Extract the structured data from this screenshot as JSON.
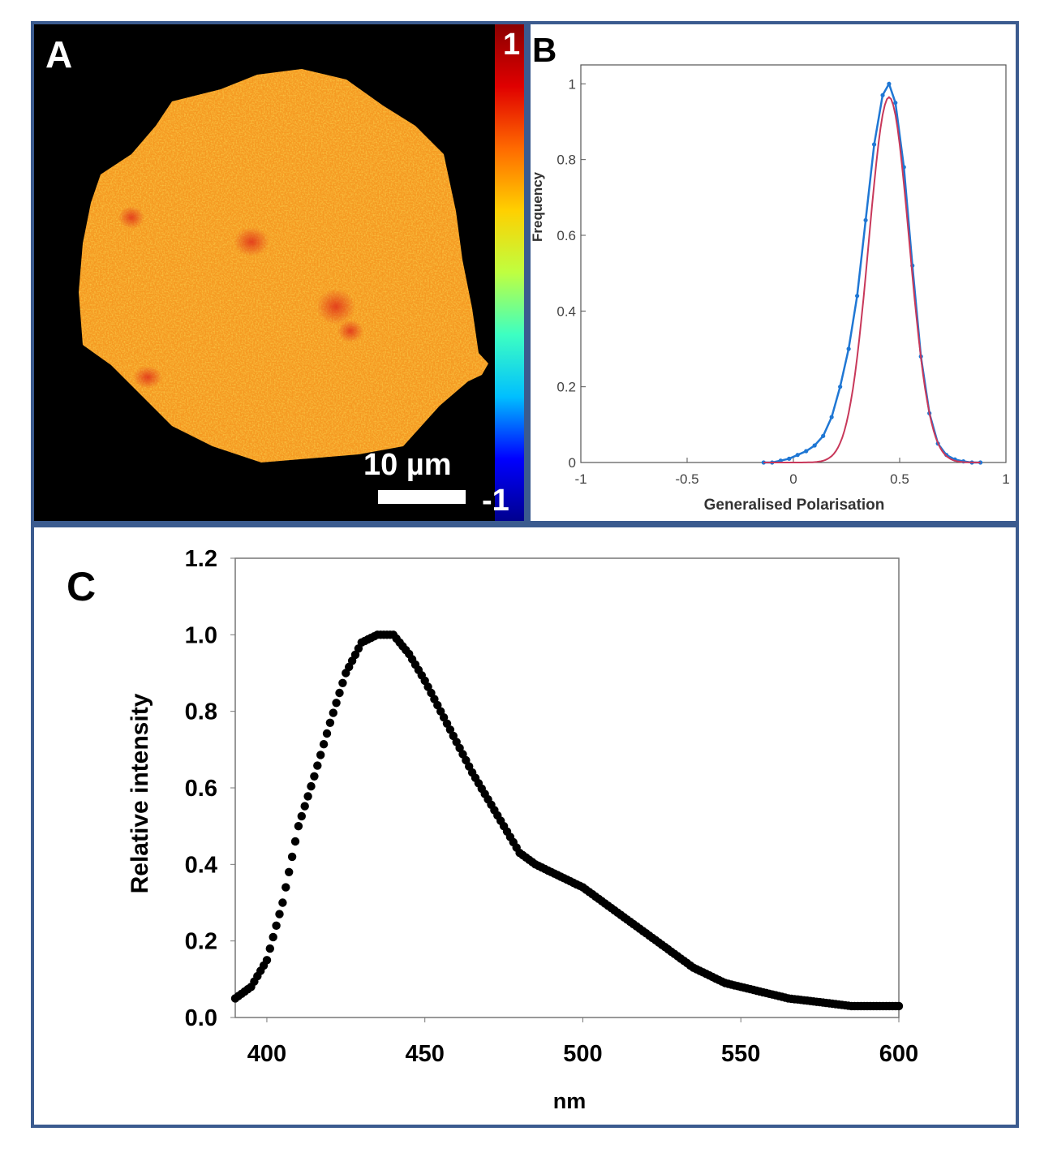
{
  "panel_a": {
    "letter": "A",
    "colorbar_max": "1",
    "colorbar_min": "-1",
    "scalebar_label": "10 µm",
    "colormap": [
      "#00008f",
      "#0000ff",
      "#00bfff",
      "#3dffc2",
      "#bfff40",
      "#ffd000",
      "#ff6a00",
      "#e00000",
      "#8a0000"
    ],
    "mean_color": "#f59a22"
  },
  "panel_b": {
    "letter": "B"
  },
  "panel_c": {
    "letter": "C"
  },
  "chart_data": [
    {
      "type": "line",
      "panel": "B",
      "title": "",
      "xlabel": "Generalised Polarisation",
      "ylabel": "Frequency",
      "xlim": [
        -1,
        1
      ],
      "ylim": [
        0,
        1.05
      ],
      "xticks": [
        -1,
        -0.5,
        0,
        0.5,
        1
      ],
      "xtick_labels": [
        "-1",
        "-0.5",
        "0",
        "0.5",
        "1"
      ],
      "yticks": [
        0,
        0.2,
        0.4,
        0.6,
        0.8,
        1
      ],
      "ytick_labels": [
        "0",
        "0.2",
        "0.4",
        "0.6",
        "0.8",
        "1"
      ],
      "series": [
        {
          "name": "histogram",
          "color": "#1f77d4",
          "markers": true,
          "x": [
            -0.14,
            -0.1,
            -0.06,
            -0.02,
            0.02,
            0.06,
            0.1,
            0.14,
            0.18,
            0.22,
            0.26,
            0.3,
            0.34,
            0.38,
            0.42,
            0.45,
            0.48,
            0.52,
            0.56,
            0.6,
            0.64,
            0.68,
            0.72,
            0.76,
            0.8,
            0.84,
            0.88
          ],
          "y": [
            0.0,
            0.0,
            0.005,
            0.01,
            0.02,
            0.03,
            0.045,
            0.07,
            0.12,
            0.2,
            0.3,
            0.44,
            0.64,
            0.84,
            0.97,
            1.0,
            0.95,
            0.78,
            0.52,
            0.28,
            0.13,
            0.05,
            0.02,
            0.008,
            0.003,
            0.0,
            0.0
          ]
        },
        {
          "name": "gaussian fit",
          "color": "#c8385a",
          "markers": false,
          "mu": 0.45,
          "sigma": 0.095,
          "amplitude": 0.965
        }
      ]
    },
    {
      "type": "scatter",
      "panel": "C",
      "title": "",
      "xlabel": "nm",
      "ylabel": "Relative intensity",
      "xlim": [
        390,
        600
      ],
      "ylim": [
        0,
        1.2
      ],
      "xticks": [
        400,
        450,
        500,
        550,
        600
      ],
      "xtick_labels": [
        "400",
        "450",
        "500",
        "550",
        "600"
      ],
      "yticks": [
        0,
        0.2,
        0.4,
        0.6,
        0.8,
        1.0,
        1.2
      ],
      "ytick_labels": [
        "0.0",
        "0.2",
        "0.4",
        "0.6",
        "0.8",
        "1.0",
        "1.2"
      ],
      "x_step": 1,
      "anchors_x": [
        390,
        395,
        400,
        405,
        410,
        415,
        420,
        425,
        430,
        435,
        440,
        445,
        450,
        455,
        460,
        465,
        470,
        475,
        480,
        485,
        490,
        495,
        500,
        505,
        510,
        515,
        520,
        525,
        530,
        535,
        540,
        545,
        550,
        555,
        560,
        565,
        570,
        575,
        580,
        585,
        590,
        595,
        600
      ],
      "anchors_y": [
        0.05,
        0.08,
        0.15,
        0.3,
        0.5,
        0.63,
        0.77,
        0.9,
        0.98,
        1.0,
        1.0,
        0.95,
        0.88,
        0.8,
        0.72,
        0.64,
        0.57,
        0.5,
        0.43,
        0.4,
        0.38,
        0.36,
        0.34,
        0.31,
        0.28,
        0.25,
        0.22,
        0.19,
        0.16,
        0.13,
        0.11,
        0.09,
        0.08,
        0.07,
        0.06,
        0.05,
        0.045,
        0.04,
        0.035,
        0.03,
        0.03,
        0.03,
        0.03
      ]
    }
  ]
}
